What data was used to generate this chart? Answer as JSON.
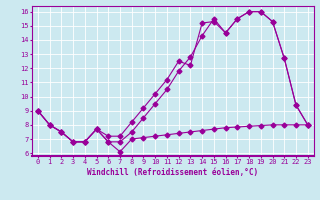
{
  "xlabel": "Windchill (Refroidissement éolien,°C)",
  "xlim": [
    -0.5,
    23.5
  ],
  "ylim": [
    5.8,
    16.4
  ],
  "xticks": [
    0,
    1,
    2,
    3,
    4,
    5,
    6,
    7,
    8,
    9,
    10,
    11,
    12,
    13,
    14,
    15,
    16,
    17,
    18,
    19,
    20,
    21,
    22,
    23
  ],
  "yticks": [
    6,
    7,
    8,
    9,
    10,
    11,
    12,
    13,
    14,
    15,
    16
  ],
  "bg_color": "#cce9f0",
  "line_color": "#990099",
  "line1_y": [
    9.0,
    8.0,
    7.5,
    6.8,
    6.8,
    7.7,
    6.8,
    6.1,
    7.0,
    7.1,
    7.2,
    7.3,
    7.4,
    7.5,
    7.6,
    7.7,
    7.8,
    7.85,
    7.9,
    7.95,
    8.0,
    8.0,
    8.0,
    8.0
  ],
  "line2_y": [
    9.0,
    8.0,
    7.5,
    6.8,
    6.8,
    7.7,
    6.8,
    6.8,
    7.5,
    8.5,
    9.5,
    10.5,
    11.8,
    12.8,
    14.3,
    15.5,
    14.5,
    15.5,
    16.0,
    16.0,
    15.3,
    12.7,
    9.4,
    8.0
  ],
  "line3_y": [
    9.0,
    8.0,
    7.5,
    6.8,
    6.8,
    7.7,
    7.2,
    7.2,
    8.2,
    9.2,
    10.2,
    11.2,
    12.5,
    12.2,
    15.2,
    15.3,
    14.5,
    15.5,
    16.0,
    16.0,
    15.3,
    12.7,
    9.4,
    8.0
  ],
  "marker": "D",
  "markersize": 2.5,
  "linewidth": 0.8,
  "tick_fontsize": 5.0,
  "xlabel_fontsize": 5.5
}
